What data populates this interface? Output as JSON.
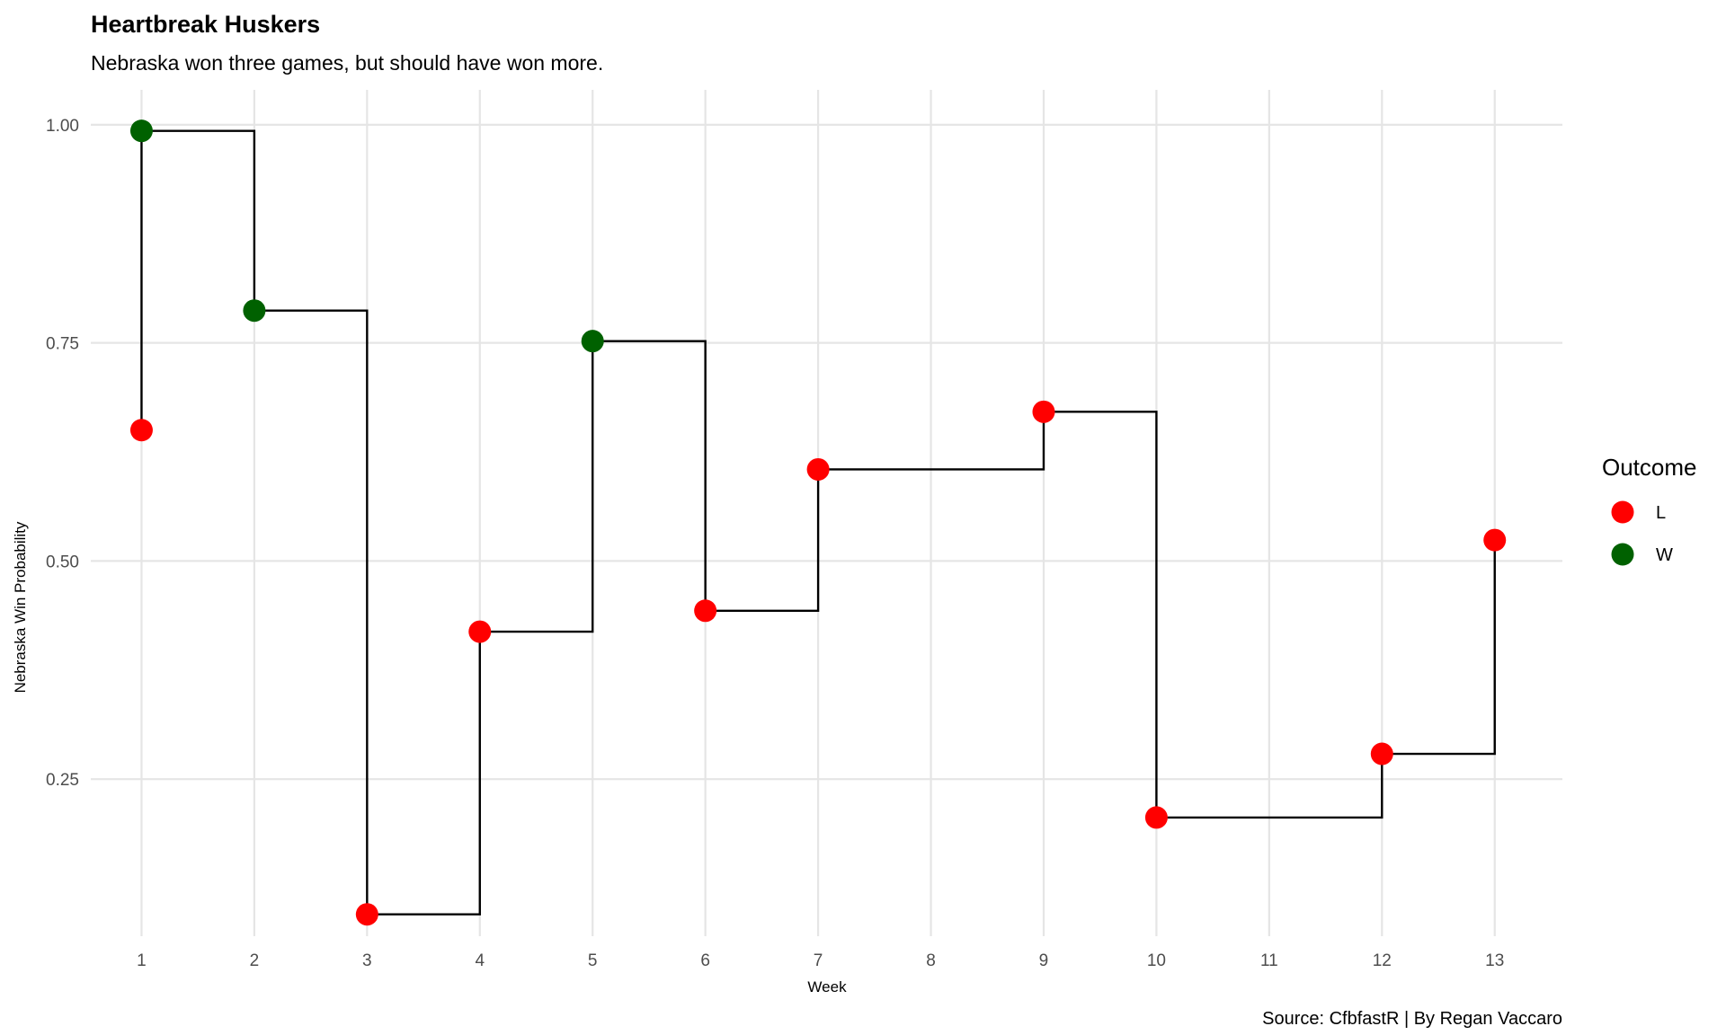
{
  "chart_data": {
    "type": "line",
    "step": true,
    "title": "Heartbreak Huskers",
    "subtitle": "Nebraska won three games, but should have won more.",
    "xlabel": "Week",
    "ylabel": "Nebraska Win Probability",
    "caption": "Source: CfbfastR | By Regan Vaccaro",
    "x_ticks": [
      1,
      2,
      3,
      4,
      5,
      6,
      7,
      8,
      9,
      10,
      11,
      12,
      13
    ],
    "y_ticks": [
      0.25,
      0.5,
      0.75,
      1.0
    ],
    "y_tick_labels": [
      "0.25",
      "0.50",
      "0.75",
      "1.00"
    ],
    "xlim": [
      0.55,
      13.6
    ],
    "ylim": [
      0.07,
      1.04
    ],
    "grid": true,
    "legend": {
      "title": "Outcome",
      "position": "right",
      "entries": [
        {
          "label": "L",
          "color": "#ff0000"
        },
        {
          "label": "W",
          "color": "#006100"
        }
      ]
    },
    "colors": {
      "L": "#ff0000",
      "W": "#006100",
      "line": "#000000",
      "grid": "#e5e5e5"
    },
    "points": [
      {
        "week": 1,
        "win_probability": 0.65,
        "outcome": "L"
      },
      {
        "week": 1,
        "win_probability": 0.993,
        "outcome": "W"
      },
      {
        "week": 2,
        "win_probability": 0.787,
        "outcome": "W"
      },
      {
        "week": 3,
        "win_probability": 0.095,
        "outcome": "L"
      },
      {
        "week": 4,
        "win_probability": 0.419,
        "outcome": "L"
      },
      {
        "week": 5,
        "win_probability": 0.752,
        "outcome": "W"
      },
      {
        "week": 6,
        "win_probability": 0.443,
        "outcome": "L"
      },
      {
        "week": 7,
        "win_probability": 0.605,
        "outcome": "L"
      },
      {
        "week": 9,
        "win_probability": 0.671,
        "outcome": "L"
      },
      {
        "week": 10,
        "win_probability": 0.206,
        "outcome": "L"
      },
      {
        "week": 12,
        "win_probability": 0.279,
        "outcome": "L"
      },
      {
        "week": 13,
        "win_probability": 0.524,
        "outcome": "L"
      }
    ]
  }
}
